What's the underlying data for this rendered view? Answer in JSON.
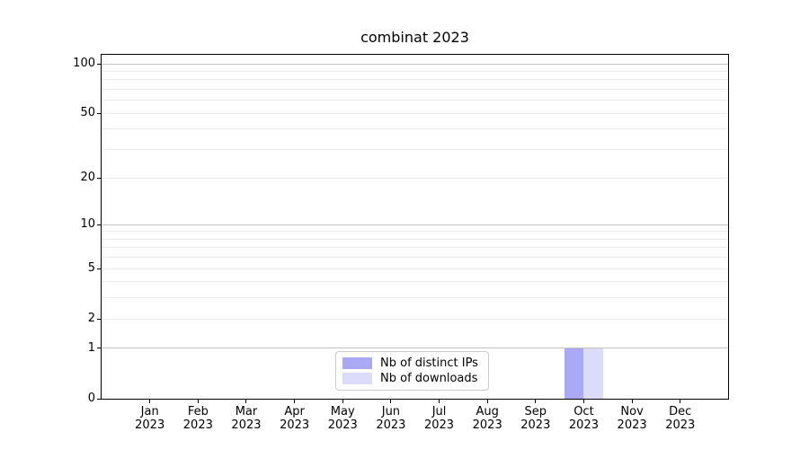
{
  "chart_data": {
    "type": "bar",
    "title": "combinat 2023",
    "x": [
      "Jan",
      "Feb",
      "Mar",
      "Apr",
      "May",
      "Jun",
      "Jul",
      "Aug",
      "Sep",
      "Oct",
      "Nov",
      "Dec"
    ],
    "x_year_line": "2023",
    "y_scale": "symlog (log(1+y))",
    "y_tick_values": [
      0,
      1,
      2,
      5,
      10,
      20,
      50,
      100
    ],
    "y_major_gridlines": [
      1,
      10,
      100
    ],
    "y_minor_gridlines": [
      2,
      3,
      4,
      5,
      6,
      7,
      8,
      9,
      20,
      30,
      40,
      50,
      60,
      70,
      80,
      90
    ],
    "ylim": [
      0,
      113
    ],
    "grid": "horizontal only, major and minor",
    "series": [
      {
        "name": "Nb of distinct IPs",
        "color": "#a9a9f6",
        "values": [
          0,
          0,
          0,
          0,
          0,
          0,
          0,
          0,
          0,
          1,
          0,
          0
        ]
      },
      {
        "name": "Nb of downloads",
        "color": "#dbdbfa",
        "values": [
          0,
          0,
          0,
          0,
          0,
          0,
          0,
          0,
          0,
          1,
          0,
          0
        ]
      }
    ],
    "legend": {
      "position": "lower center",
      "entries": [
        "Nb of distinct IPs",
        "Nb of downloads"
      ]
    },
    "colors": {
      "spine": "#000000",
      "grid_major": "#c3c3c3",
      "grid_minor": "#ebebeb",
      "background": "#ffffff",
      "text": "#000000"
    }
  }
}
